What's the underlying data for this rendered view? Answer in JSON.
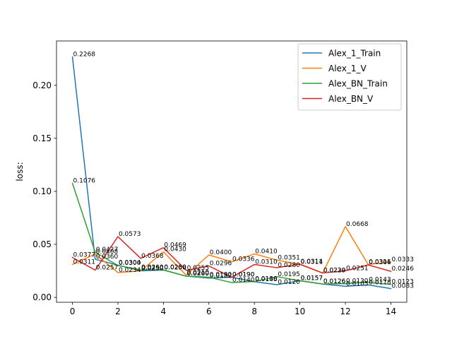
{
  "chart_data": {
    "type": "line",
    "title": "",
    "xlabel": "",
    "ylabel": "loss:",
    "xlim": [
      -0.7,
      14.7
    ],
    "ylim": [
      -0.0046,
      0.2418
    ],
    "x": [
      0,
      1,
      2,
      3,
      4,
      5,
      6,
      7,
      8,
      9,
      10,
      11,
      12,
      13,
      14
    ],
    "xticks": [
      0,
      2,
      4,
      6,
      8,
      10,
      12,
      14
    ],
    "yticks": [
      0.0,
      0.05,
      0.1,
      0.15,
      0.2
    ],
    "ytick_labels": [
      "0.00",
      "0.05",
      "0.10",
      "0.15",
      "0.20"
    ],
    "grid": false,
    "legend_position": "top-right",
    "series": [
      {
        "name": "Alex_1_Train",
        "color": "#1f77b4",
        "values": [
          0.2268,
          0.036,
          0.0304,
          0.025,
          0.0258,
          0.02,
          0.0182,
          0.019,
          0.0148,
          0.012,
          0.0157,
          0.0126,
          0.0105,
          0.0118,
          0.0083
        ],
        "labels": [
          "0.2268",
          "0.0360",
          "0.0304",
          "0.0250",
          "0.0258",
          "0.0200",
          "0.0182",
          "0.0190",
          "0.0148",
          "0.0120",
          "0.0157",
          "0.0126",
          "0.0105",
          "0.0118",
          "0.0083"
        ]
      },
      {
        "name": "Alex_1_V",
        "color": "#ff7f0e",
        "values": [
          0.0311,
          0.0408,
          0.0234,
          0.025,
          0.043,
          0.021,
          0.04,
          0.0336,
          0.041,
          0.0351,
          0.0311,
          0.0229,
          0.0668,
          0.0311,
          0.0333
        ],
        "labels": [
          "0.0311",
          "0.0408",
          "0.0234",
          "0.0250",
          "0.0430",
          "0.0210",
          "0.0400",
          "0.0336",
          "0.0410",
          "0.0351",
          "0.0311",
          "0.0229",
          "0.0668",
          "0.0311",
          "0.0333"
        ]
      },
      {
        "name": "Alex_BN_Train",
        "color": "#2ca02c",
        "values": [
          0.1076,
          0.0427,
          0.03,
          0.026,
          0.026,
          0.02,
          0.019,
          0.014,
          0.015,
          0.0195,
          0.0157,
          0.0126,
          0.013,
          0.0143,
          0.0123
        ],
        "labels": [
          "0.1076",
          "0.0427",
          "0.0300",
          "0.0260",
          "0.0260",
          "0.0200",
          "0.0190",
          "0.0140",
          "0.0150",
          "0.0195",
          "0.0157",
          "0.0126",
          "0.0130",
          "0.0143",
          "0.0123"
        ]
      },
      {
        "name": "Alex_BN_V",
        "color": "#d62728",
        "values": [
          0.0377,
          0.0257,
          0.0573,
          0.0368,
          0.0469,
          0.0255,
          0.0296,
          0.019,
          0.031,
          0.028,
          0.0314,
          0.023,
          0.0251,
          0.0306,
          0.0246
        ],
        "labels": [
          "0.0377",
          "0.0257",
          "0.0573",
          "0.0368",
          "0.0469",
          "0.0255",
          "0.0296",
          "0.0190",
          "0.0310",
          "0.0280",
          "0.0314",
          "0.0230",
          "0.0251",
          "0.0306",
          "0.0246"
        ]
      }
    ]
  }
}
